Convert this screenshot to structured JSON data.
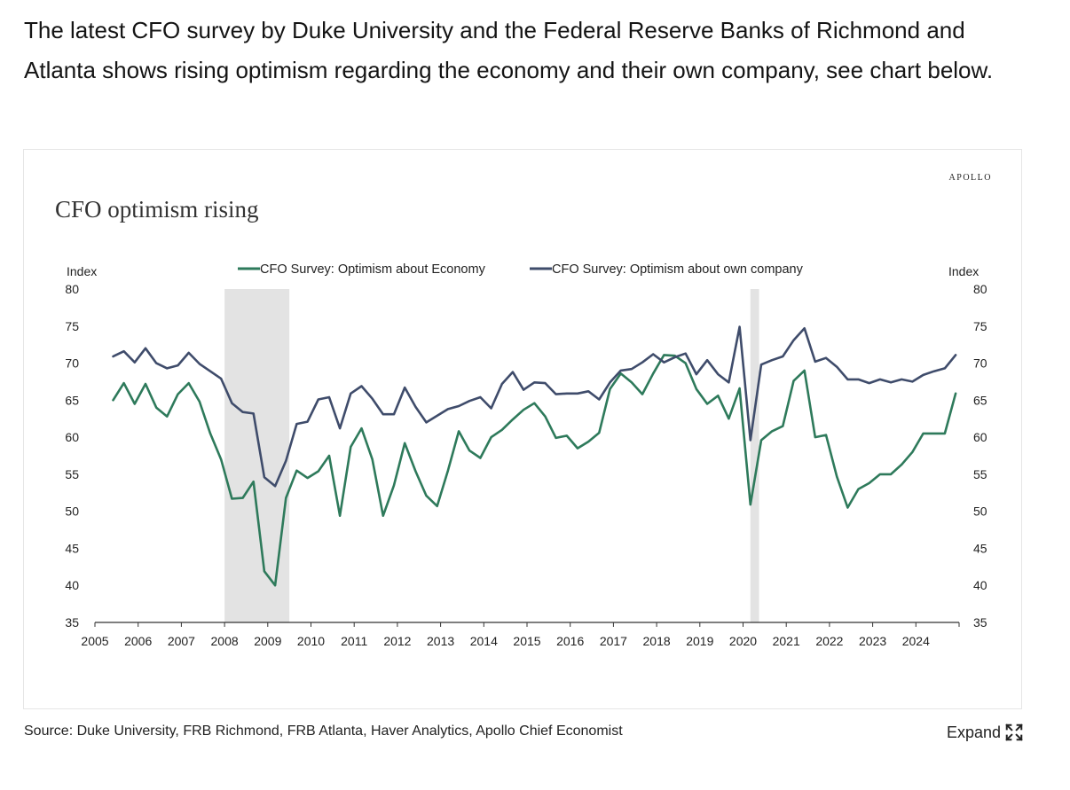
{
  "intro_text": "The latest CFO survey by Duke University and the Federal Reserve Banks of Richmond and Atlanta shows rising optimism regarding the economy and their own company, see chart below.",
  "brand": "APOLLO",
  "source": "Source: Duke University, FRB Richmond, FRB Atlanta, Haver Analytics, Apollo Chief Economist",
  "expand_label": "Expand",
  "icons": {
    "expand": "expand-arrows-icon"
  },
  "colors": {
    "economy": "#2e7a5b",
    "company": "#3f4c6b",
    "recession": "#e3e3e3",
    "axis": "#333333"
  },
  "chart_data": {
    "type": "line",
    "title": "CFO optimism rising",
    "ylabel_left": "Index",
    "ylabel_right": "Index",
    "ylim": [
      35,
      80
    ],
    "yticks": [
      35,
      40,
      45,
      50,
      55,
      60,
      65,
      70,
      75,
      80
    ],
    "xlim": [
      2005,
      2025
    ],
    "xticks": [
      2005,
      2006,
      2007,
      2008,
      2009,
      2010,
      2011,
      2012,
      2013,
      2014,
      2015,
      2016,
      2017,
      2018,
      2019,
      2020,
      2021,
      2022,
      2023,
      2024
    ],
    "legend_placement": "top",
    "recessions": [
      [
        2008.0,
        2009.5
      ],
      [
        2020.17,
        2020.37
      ]
    ],
    "series": [
      {
        "name": "CFO Survey: Optimism about Economy",
        "color": "#2e7a5b",
        "x": [
          2005.42,
          2005.67,
          2005.92,
          2006.17,
          2006.42,
          2006.67,
          2006.92,
          2007.17,
          2007.42,
          2007.67,
          2007.92,
          2008.17,
          2008.42,
          2008.67,
          2008.92,
          2009.17,
          2009.42,
          2009.67,
          2009.92,
          2010.17,
          2010.42,
          2010.67,
          2010.92,
          2011.17,
          2011.42,
          2011.67,
          2011.92,
          2012.17,
          2012.42,
          2012.67,
          2012.92,
          2013.17,
          2013.42,
          2013.67,
          2013.92,
          2014.17,
          2014.42,
          2014.67,
          2014.92,
          2015.17,
          2015.42,
          2015.67,
          2015.92,
          2016.17,
          2016.42,
          2016.67,
          2016.92,
          2017.17,
          2017.42,
          2017.67,
          2017.92,
          2018.17,
          2018.42,
          2018.67,
          2018.92,
          2019.17,
          2019.42,
          2019.67,
          2019.92,
          2020.17,
          2020.42,
          2020.67,
          2020.92,
          2021.17,
          2021.42,
          2021.67,
          2021.92,
          2022.17,
          2022.42,
          2022.67,
          2022.92,
          2023.17,
          2023.42,
          2023.67,
          2023.92,
          2024.17,
          2024.42,
          2024.67,
          2024.92
        ],
        "values": [
          65.0,
          67.3,
          64.5,
          67.2,
          64.0,
          62.8,
          65.8,
          67.3,
          64.8,
          60.5,
          57.0,
          51.7,
          51.8,
          54.0,
          41.9,
          40.0,
          51.8,
          55.5,
          54.5,
          55.4,
          57.5,
          49.4,
          58.7,
          61.2,
          57.0,
          49.4,
          53.5,
          59.2,
          55.4,
          52.1,
          50.7,
          55.5,
          60.8,
          58.2,
          57.2,
          60.0,
          61.0,
          62.4,
          63.7,
          64.6,
          62.8,
          59.9,
          60.2,
          58.5,
          59.4,
          60.6,
          66.5,
          68.6,
          67.4,
          65.8,
          68.6,
          71.1,
          71.0,
          70.0,
          66.5,
          64.5,
          65.6,
          62.5,
          66.6,
          50.9,
          59.6,
          60.8,
          61.5,
          67.6,
          69.0,
          60.0,
          60.3,
          54.7,
          50.5,
          53.0,
          53.8,
          55.0,
          55.0,
          56.3,
          58.0,
          60.5,
          60.5,
          60.5,
          65.9
        ]
      },
      {
        "name": "CFO Survey: Optimism about own company",
        "color": "#3f4c6b",
        "x": [
          2005.42,
          2005.67,
          2005.92,
          2006.17,
          2006.42,
          2006.67,
          2006.92,
          2007.17,
          2007.42,
          2007.67,
          2007.92,
          2008.17,
          2008.42,
          2008.67,
          2008.92,
          2009.17,
          2009.42,
          2009.67,
          2009.92,
          2010.17,
          2010.42,
          2010.67,
          2010.92,
          2011.17,
          2011.42,
          2011.67,
          2011.92,
          2012.17,
          2012.42,
          2012.67,
          2012.92,
          2013.17,
          2013.42,
          2013.67,
          2013.92,
          2014.17,
          2014.42,
          2014.67,
          2014.92,
          2015.17,
          2015.42,
          2015.67,
          2015.92,
          2016.17,
          2016.42,
          2016.67,
          2016.92,
          2017.17,
          2017.42,
          2017.67,
          2017.92,
          2018.17,
          2018.42,
          2018.67,
          2018.92,
          2019.17,
          2019.42,
          2019.67,
          2019.92,
          2020.17,
          2020.42,
          2020.67,
          2020.92,
          2021.17,
          2021.42,
          2021.67,
          2021.92,
          2022.17,
          2022.42,
          2022.67,
          2022.92,
          2023.17,
          2023.42,
          2023.67,
          2023.92,
          2024.17,
          2024.42,
          2024.67,
          2024.92
        ],
        "values": [
          70.9,
          71.6,
          70.1,
          72.0,
          70.0,
          69.3,
          69.7,
          71.4,
          69.9,
          68.9,
          67.9,
          64.6,
          63.4,
          63.2,
          54.6,
          53.4,
          56.8,
          61.8,
          62.1,
          65.1,
          65.4,
          61.2,
          65.9,
          66.9,
          65.2,
          63.1,
          63.1,
          66.7,
          64.1,
          62.0,
          62.9,
          63.8,
          64.2,
          64.9,
          65.4,
          63.9,
          67.2,
          68.8,
          66.4,
          67.4,
          67.3,
          65.8,
          65.9,
          65.9,
          66.2,
          65.1,
          67.4,
          69.0,
          69.2,
          70.1,
          71.2,
          70.1,
          70.8,
          71.3,
          68.5,
          70.4,
          68.5,
          67.4,
          74.9,
          59.6,
          69.8,
          70.4,
          70.9,
          73.1,
          74.7,
          70.2,
          70.7,
          69.5,
          67.8,
          67.8,
          67.3,
          67.8,
          67.4,
          67.8,
          67.5,
          68.4,
          68.9,
          69.3,
          71.1
        ]
      }
    ]
  }
}
